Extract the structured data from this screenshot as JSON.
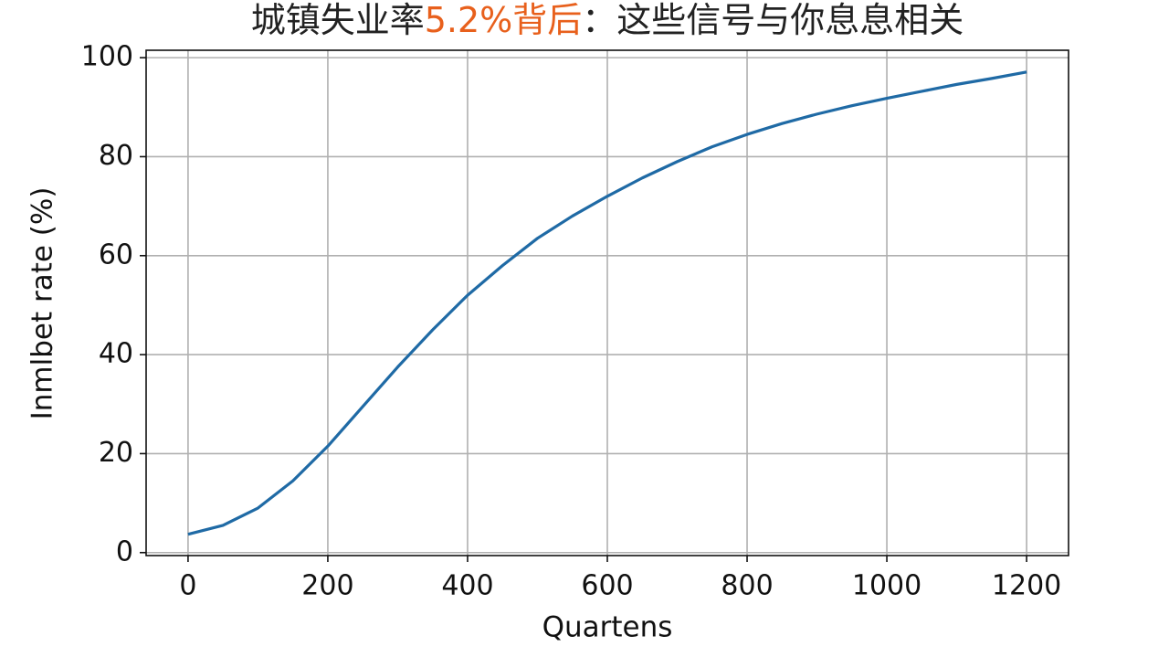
{
  "chart_data": {
    "type": "line",
    "title": [
      "城镇失业率",
      "5.2%背后",
      "：这些信号与你息息相关"
    ],
    "title_color": "#222222",
    "title_highlight_color": "#e8601c",
    "xlabel": "Quartens",
    "ylabel": "Inmlbet rate (%)",
    "x": [
      0,
      50,
      100,
      150,
      200,
      250,
      300,
      350,
      400,
      450,
      500,
      550,
      600,
      650,
      700,
      750,
      800,
      850,
      900,
      950,
      1000,
      1050,
      1100,
      1150,
      1200
    ],
    "series": [
      {
        "color": "#1f6aa5",
        "values": [
          3.7,
          5.5,
          9,
          14.5,
          21.5,
          29.5,
          37.5,
          45,
          52,
          58,
          63.5,
          68,
          72,
          75.7,
          79,
          82,
          84.5,
          86.7,
          88.6,
          90.3,
          91.8,
          93.2,
          94.6,
          95.8,
          97.1
        ]
      }
    ],
    "xlim": [
      -60,
      1260
    ],
    "ylim": [
      -0.6,
      101.5
    ],
    "xticks": [
      0,
      200,
      400,
      600,
      800,
      1000,
      1200
    ],
    "yticks": [
      0,
      20,
      40,
      60,
      80,
      100
    ],
    "grid": true
  }
}
